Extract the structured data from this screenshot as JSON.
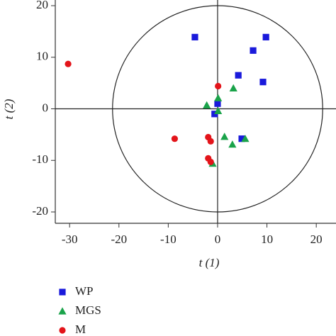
{
  "chart_data": {
    "type": "scatter",
    "xlabel": "t (1)",
    "ylabel": "t (2)",
    "xlim": [
      -32.9,
      24
    ],
    "ylim": [
      -22.2,
      21.1
    ],
    "xticks": [
      -30,
      -20,
      -10,
      0,
      10,
      20
    ],
    "yticks": [
      -20,
      -10,
      0,
      10,
      20
    ],
    "ellipse": {
      "rx": 21.3,
      "ry": 20
    },
    "series": [
      {
        "name": "WP",
        "color": "#1a1adb",
        "marker": "square",
        "x": [
          -4.6,
          9.8,
          7.2,
          4.2,
          9.2,
          0,
          -0.6,
          4.9
        ],
        "values": [
          13.9,
          13.9,
          11.3,
          6.5,
          5.2,
          1.0,
          -1.0,
          -5.8
        ]
      },
      {
        "name": "MGS",
        "color": "#1aa34a",
        "marker": "triangle",
        "x": [
          -2.2,
          0.1,
          3.2,
          0.1,
          1.4,
          5.6,
          3.0,
          -1.0
        ],
        "values": [
          0.7,
          2.1,
          4.0,
          -0.4,
          -5.4,
          -5.8,
          -6.9,
          -10.6
        ]
      },
      {
        "name": "M",
        "color": "#e3141a",
        "marker": "circle",
        "x": [
          -30.3,
          0.1,
          -8.7,
          -1.9,
          -1.4,
          -1.9,
          -1.4
        ],
        "values": [
          8.7,
          4.4,
          -5.8,
          -5.5,
          -6.3,
          -9.6,
          -10.3
        ]
      }
    ]
  }
}
